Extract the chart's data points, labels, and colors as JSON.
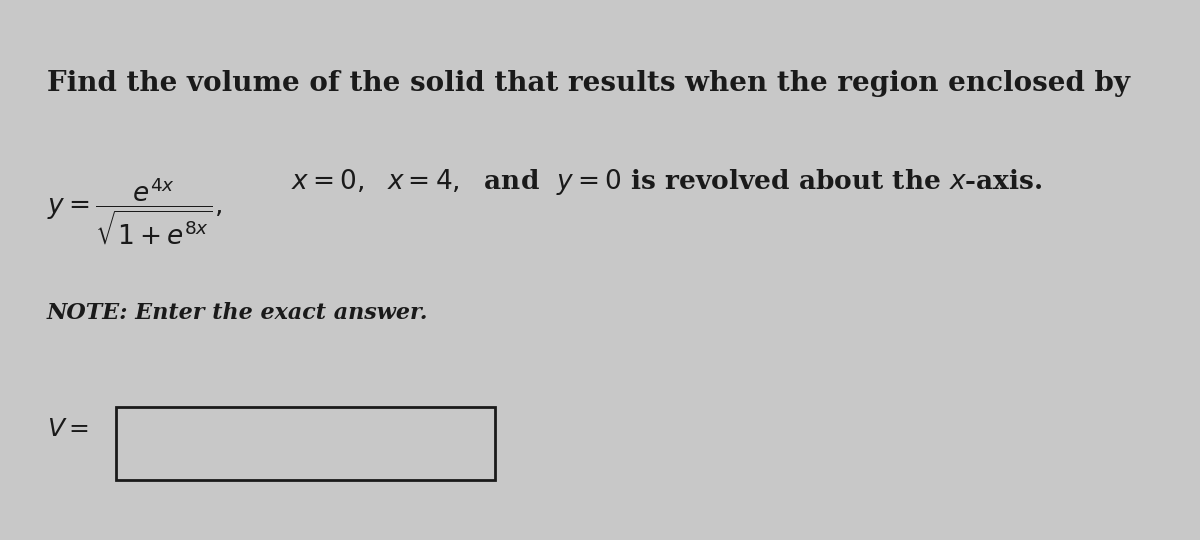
{
  "background_color": "#c8c8c8",
  "line1": "Find the volume of the solid that results when the region enclosed by",
  "note": "NOTE: Enter the exact answer.",
  "text_color": "#1a1a1a",
  "box_color": "#1a1a1a",
  "box_fill": "#c8c8c8",
  "font_size_main": 20,
  "font_size_formula": 19,
  "font_size_note": 16,
  "font_size_answer": 18
}
